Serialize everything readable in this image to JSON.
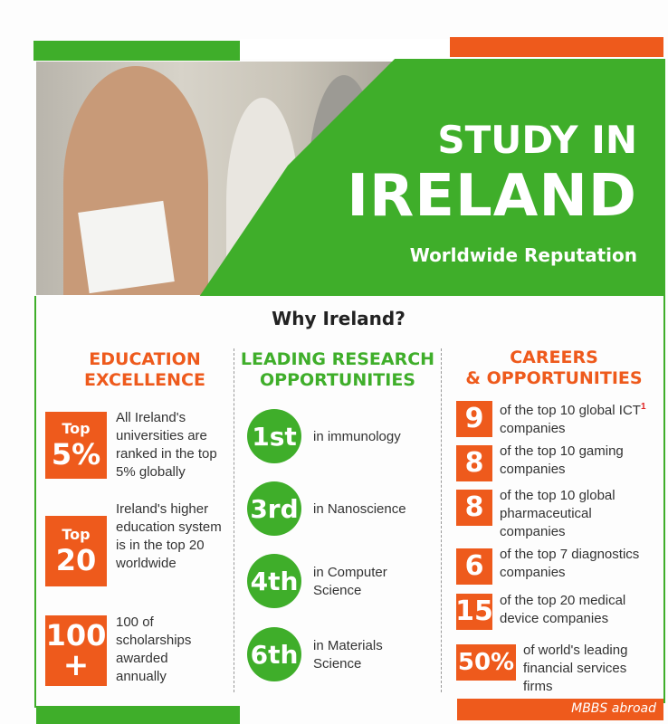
{
  "header": {
    "title_line1": "STUDY IN",
    "title_line2": "IRELAND",
    "subtitle": "Worldwide Reputation"
  },
  "section_title": "Why Ireland?",
  "education": {
    "heading_line1": "EDUCATION",
    "heading_line2": "EXCELLENCE",
    "items": [
      {
        "badge_top": "Top",
        "badge_main": "5%",
        "text": "All Ireland's universities are ranked in the top 5% globally"
      },
      {
        "badge_top": "Top",
        "badge_main": "20",
        "text": "Ireland's higher education system is in the top 20 worldwide"
      },
      {
        "badge_top": "100",
        "badge_main": "+",
        "text": "100 of scholarships awarded annually"
      }
    ]
  },
  "research": {
    "heading_line1": "LEADING RESEARCH",
    "heading_line2": "OPPORTUNITIES",
    "items": [
      {
        "rank": "1st",
        "text": "in immunology"
      },
      {
        "rank": "3rd",
        "text": "in Nanoscience"
      },
      {
        "rank": "4th",
        "text": "in Computer Science"
      },
      {
        "rank": "6th",
        "text": "in Materials Science"
      }
    ]
  },
  "careers": {
    "heading_line1": "CAREERS",
    "heading_line2": "& OPPORTUNITIES",
    "items": [
      {
        "number": "9",
        "text": "of the top 10 global ICT",
        "sup": "1",
        "text_after": " companies"
      },
      {
        "number": "8",
        "text": "of the top 10 gaming companies"
      },
      {
        "number": "8",
        "text": "of the top 10 global pharmaceutical companies"
      },
      {
        "number": "6",
        "text": "of the top 7 diagnostics companies"
      },
      {
        "number": "15",
        "text": "of the top 20 medical device companies"
      },
      {
        "number": "50%",
        "text": "of world's leading financial services firms"
      }
    ]
  },
  "footer": {
    "credit": "MBBS abroad"
  },
  "colors": {
    "green": "#3fae2a",
    "orange": "#ee5a1c"
  }
}
